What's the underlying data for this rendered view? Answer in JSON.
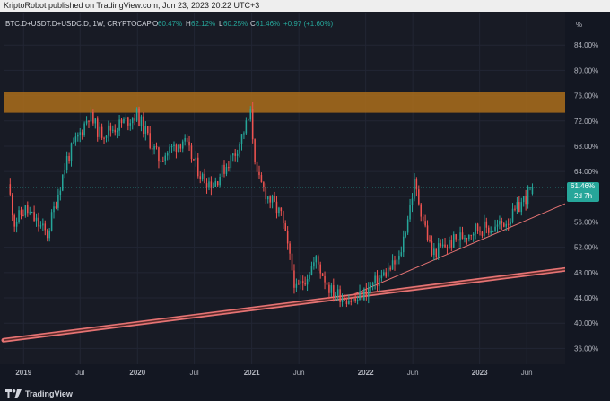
{
  "header": {
    "published_text": "KriptoRobot published on TradingView.com, Jun 23, 2023 20:22 UTC+3"
  },
  "footer": {
    "brand": "TradingView"
  },
  "legend": {
    "symbol": "BTC.D+USDT.D+USDC.D, 1W, CRYPTOCAP",
    "open_label": "O",
    "open_value": "60.47%",
    "high_label": "H",
    "high_value": "62.12%",
    "low_label": "L",
    "low_value": "60.25%",
    "close_label": "C",
    "close_value": "61.46%",
    "change": "+0.97 (+1.60%)"
  },
  "price_tag": {
    "value": "61.46%",
    "countdown": "2d 7h"
  },
  "colors": {
    "up": "#26a69a",
    "down": "#ef5350",
    "zone": "#b8741a",
    "trend": "#e57373",
    "background": "#181b25",
    "grid": "#222634",
    "text": "#b2b5be"
  },
  "chart_data": {
    "type": "candlestick",
    "title": "BTC.D+USDT.D+USDC.D, 1W, CRYPTOCAP",
    "y_unit": "%",
    "ylim": [
      33.5,
      89.0
    ],
    "y_ticks": [
      36,
      40,
      44,
      48,
      52,
      56,
      60,
      64,
      68,
      72,
      76,
      80,
      84
    ],
    "y_tick_labels": [
      "36.00%",
      "40.00%",
      "44.00%",
      "48.00%",
      "52.00%",
      "56.00%",
      "60.00%",
      "64.00%",
      "68.00%",
      "72.00%",
      "76.00%",
      "80.00%",
      "84.00%"
    ],
    "xlim": [
      "2018-10-29",
      "2023-10-02"
    ],
    "x_ticks": [
      "2019-01-01",
      "2019-07-01",
      "2020-01-01",
      "2020-07-01",
      "2021-01-01",
      "2021-06-01",
      "2022-01-01",
      "2022-06-01",
      "2023-01-01",
      "2023-06-01"
    ],
    "x_tick_labels": [
      "2019",
      "Jul",
      "2020",
      "Jul",
      "2021",
      "Jun",
      "2022",
      "Jun",
      "2023",
      "Jun"
    ],
    "anchors": [
      [
        "2018-11-19",
        60.0
      ],
      [
        "2018-12-03",
        56.0
      ],
      [
        "2019-01-07",
        58.0
      ],
      [
        "2019-02-11",
        56.0
      ],
      [
        "2019-03-18",
        54.0
      ],
      [
        "2019-05-20",
        66.0
      ],
      [
        "2019-07-01",
        70.0
      ],
      [
        "2019-07-29",
        73.0
      ],
      [
        "2019-09-02",
        70.0
      ],
      [
        "2019-10-21",
        71.0
      ],
      [
        "2019-12-30",
        73.0
      ],
      [
        "2020-03-09",
        66.0
      ],
      [
        "2020-05-25",
        69.0
      ],
      [
        "2020-07-27",
        63.0
      ],
      [
        "2020-08-31",
        62.0
      ],
      [
        "2020-11-09",
        67.0
      ],
      [
        "2020-12-28",
        73.0
      ],
      [
        "2021-01-18",
        63.0
      ],
      [
        "2021-02-22",
        60.0
      ],
      [
        "2021-04-05",
        57.0
      ],
      [
        "2021-05-24",
        45.0
      ],
      [
        "2021-07-26",
        50.0
      ],
      [
        "2021-09-13",
        45.0
      ],
      [
        "2021-11-29",
        43.5
      ],
      [
        "2022-02-14",
        47.0
      ],
      [
        "2022-04-18",
        50.0
      ],
      [
        "2022-06-06",
        62.0
      ],
      [
        "2022-08-01",
        51.0
      ],
      [
        "2022-10-10",
        53.0
      ],
      [
        "2022-12-19",
        55.0
      ],
      [
        "2023-02-20",
        55.0
      ],
      [
        "2023-04-17",
        57.0
      ],
      [
        "2023-05-15",
        59.0
      ],
      [
        "2023-06-19",
        61.46
      ]
    ],
    "last_candle": {
      "date": "2023-06-19",
      "open": 60.47,
      "high": 62.12,
      "low": 60.25,
      "close": 61.46
    },
    "zones": [
      {
        "from": 73.3,
        "to": 76.6
      }
    ],
    "trendlines": [
      {
        "from": [
          "2018-10-29",
          37.3
        ],
        "to": [
          "2023-10-02",
          48.5
        ],
        "double": true
      },
      {
        "from": [
          "2021-11-22",
          44.5
        ],
        "to": [
          "2023-10-02",
          58.9
        ],
        "double": false
      }
    ],
    "last_price_line": 61.46
  }
}
